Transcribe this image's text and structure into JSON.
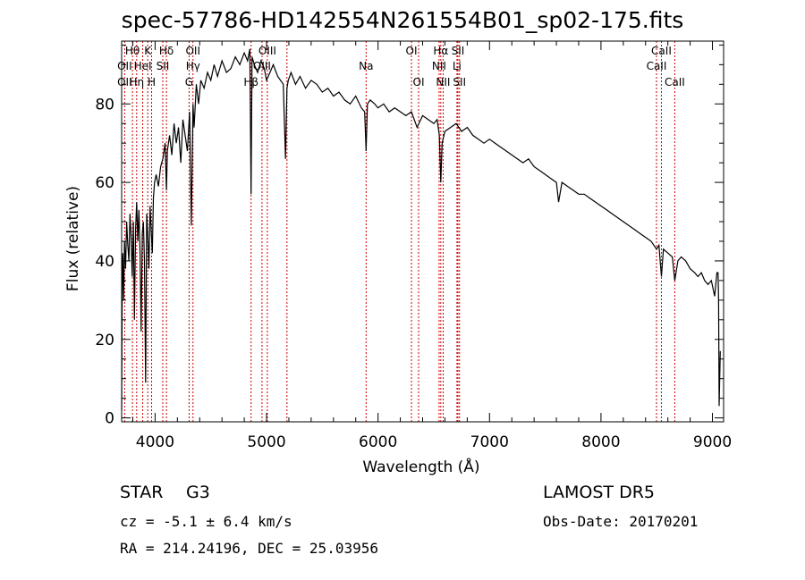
{
  "title": "spec-57786-HD142554N261554B01_sp02-175.fits",
  "footer": {
    "object_class": "STAR",
    "subclass": "G3",
    "survey": "LAMOST DR5",
    "cz": "cz = -5.1 ± 6.4 km/s",
    "obs_date": "Obs-Date: 20170201",
    "coords": "RA = 214.24196, DEC =  25.03956"
  },
  "chart_data": {
    "type": "line",
    "xlabel": "Wavelength (Å)",
    "ylabel": "Flux (relative)",
    "xlim": [
      3700,
      9100
    ],
    "ylim": [
      -1,
      96
    ],
    "xticks": [
      4000,
      5000,
      6000,
      7000,
      8000,
      9000
    ],
    "yticks": [
      0,
      20,
      40,
      60,
      80
    ],
    "line_color": "#000000",
    "marker_color": "#cc0000",
    "series": [
      {
        "x": [
          3700,
          3705,
          3710,
          3718,
          3726,
          3735,
          3745,
          3755,
          3765,
          3775,
          3785,
          3795,
          3805,
          3815,
          3825,
          3835,
          3845,
          3855,
          3865,
          3875,
          3885,
          3895,
          3905,
          3915,
          3925,
          3935,
          3945,
          3955,
          3965,
          3975,
          3985,
          3995,
          4010,
          4030,
          4050,
          4070,
          4090,
          4102,
          4110,
          4130,
          4150,
          4170,
          4190,
          4210,
          4230,
          4250,
          4270,
          4290,
          4310,
          4325,
          4340,
          4350,
          4370,
          4390,
          4410,
          4440,
          4470,
          4500,
          4530,
          4560,
          4600,
          4640,
          4680,
          4720,
          4760,
          4800,
          4830,
          4850,
          4861,
          4870,
          4890,
          4920,
          4950,
          4980,
          5000,
          5030,
          5060,
          5100,
          5150,
          5170,
          5183,
          5195,
          5220,
          5260,
          5300,
          5350,
          5400,
          5450,
          5500,
          5550,
          5600,
          5650,
          5700,
          5750,
          5800,
          5850,
          5880,
          5893,
          5905,
          5930,
          5970,
          6000,
          6050,
          6100,
          6150,
          6200,
          6250,
          6300,
          6350,
          6400,
          6450,
          6500,
          6530,
          6550,
          6563,
          6575,
          6600,
          6650,
          6700,
          6750,
          6800,
          6850,
          6900,
          6950,
          7000,
          7050,
          7100,
          7150,
          7200,
          7250,
          7300,
          7350,
          7400,
          7450,
          7500,
          7550,
          7600,
          7620,
          7650,
          7700,
          7750,
          7800,
          7850,
          7900,
          7950,
          8000,
          8050,
          8100,
          8150,
          8200,
          8250,
          8300,
          8350,
          8400,
          8450,
          8498,
          8520,
          8542,
          8560,
          8600,
          8640,
          8662,
          8690,
          8720,
          8760,
          8800,
          8840,
          8870,
          8900,
          8930,
          8960,
          8990,
          9020,
          9040,
          9050,
          9055,
          9060,
          9070
        ],
        "y": [
          2,
          35,
          42,
          30,
          45,
          38,
          50,
          44,
          40,
          52,
          46,
          36,
          50,
          25,
          48,
          55,
          45,
          53,
          42,
          22,
          47,
          50,
          40,
          9,
          52,
          46,
          38,
          54,
          48,
          42,
          56,
          60,
          62,
          59,
          64,
          66,
          70,
          58,
          68,
          72,
          67,
          75,
          70,
          74,
          65,
          76,
          72,
          68,
          78,
          49,
          80,
          74,
          85,
          80,
          86,
          84,
          88,
          86,
          90,
          87,
          91,
          88,
          89,
          92,
          90,
          93,
          91,
          94,
          57,
          92,
          90,
          88,
          91,
          89,
          86,
          88,
          90,
          87,
          85,
          66,
          84,
          86,
          88,
          85,
          87,
          84,
          86,
          85,
          83,
          84,
          82,
          83,
          81,
          80,
          82,
          79,
          78,
          68,
          80,
          81,
          80,
          79,
          80,
          78,
          79,
          78,
          77,
          78,
          74,
          77,
          76,
          75,
          76,
          72,
          60,
          70,
          73,
          74,
          75,
          73,
          74,
          72,
          71,
          70,
          71,
          70,
          69,
          68,
          67,
          66,
          65,
          66,
          64,
          63,
          62,
          61,
          60,
          55,
          60,
          59,
          58,
          57,
          57,
          56,
          55,
          54,
          53,
          52,
          51,
          50,
          49,
          48,
          47,
          46,
          45,
          43,
          44,
          36,
          43,
          42,
          41,
          35,
          40,
          41,
          40,
          38,
          37,
          36,
          37,
          35,
          34,
          35,
          31,
          37,
          37,
          30,
          3,
          17
        ]
      }
    ],
    "annotations": [
      {
        "label": "Hθ",
        "x": 3797,
        "row": 1
      },
      {
        "label": "K",
        "x": 3934,
        "row": 1
      },
      {
        "label": "Hδ",
        "x": 4102,
        "row": 1
      },
      {
        "label": "OII",
        "x": 4340,
        "row": 1
      },
      {
        "label": "OIII",
        "x": 5007,
        "row": 1
      },
      {
        "label": "OI",
        "x": 6300,
        "row": 1
      },
      {
        "label": "Hα",
        "x": 6563,
        "row": 1
      },
      {
        "label": "SII",
        "x": 6717,
        "row": 1
      },
      {
        "label": "CaII",
        "x": 8542,
        "row": 1
      },
      {
        "label": "OII",
        "x": 3727,
        "row": 2
      },
      {
        "label": "HeI",
        "x": 3889,
        "row": 2
      },
      {
        "label": "SII",
        "x": 4069,
        "row": 2
      },
      {
        "label": "Hγ",
        "x": 4340,
        "row": 2
      },
      {
        "label": "OIII",
        "x": 4959,
        "row": 2
      },
      {
        "label": "Na",
        "x": 5893,
        "row": 2
      },
      {
        "label": "NII",
        "x": 6548,
        "row": 2
      },
      {
        "label": "Li",
        "x": 6708,
        "row": 2
      },
      {
        "label": "CaII",
        "x": 8498,
        "row": 2
      },
      {
        "label": "OII",
        "x": 3727,
        "row": 3
      },
      {
        "label": "Hη",
        "x": 3835,
        "row": 3
      },
      {
        "label": "H",
        "x": 3969,
        "row": 3
      },
      {
        "label": "G",
        "x": 4305,
        "row": 3
      },
      {
        "label": "Hβ",
        "x": 4861,
        "row": 3
      },
      {
        "label": "OI",
        "x": 6364,
        "row": 3
      },
      {
        "label": "NII",
        "x": 6584,
        "row": 3
      },
      {
        "label": "SII",
        "x": 6731,
        "row": 3
      },
      {
        "label": "CaII",
        "x": 8662,
        "row": 3
      }
    ],
    "marker_lines": [
      3727,
      3797,
      3835,
      3889,
      3934,
      3969,
      4069,
      4102,
      4305,
      4340,
      4861,
      4959,
      5007,
      5183,
      5893,
      6300,
      6364,
      6548,
      6563,
      6584,
      6708,
      6717,
      6731,
      8498,
      8542,
      8662
    ]
  }
}
